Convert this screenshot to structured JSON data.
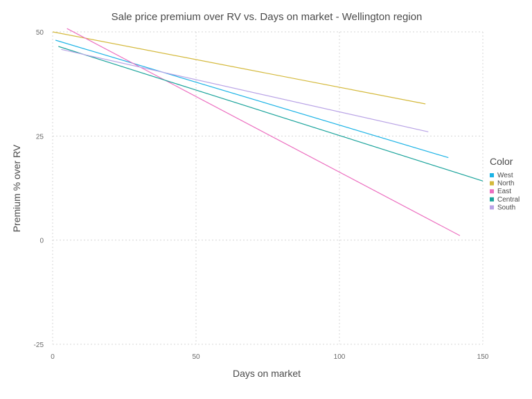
{
  "chart_data": {
    "type": "line",
    "title": "Sale price premium over RV vs. Days on market - Wellington region",
    "xlabel": "Days on market",
    "ylabel": "Premium % over RV",
    "xlim": [
      0,
      150
    ],
    "ylim": [
      -25,
      50
    ],
    "xticks": [
      0,
      50,
      100,
      150
    ],
    "yticks": [
      -25,
      0,
      25,
      50
    ],
    "grid": true,
    "legend": {
      "title": "Color",
      "placement": "right"
    },
    "series": [
      {
        "name": "West",
        "color": "#1bb3e6",
        "x": [
          1,
          138
        ],
        "y": [
          48.0,
          19.8
        ]
      },
      {
        "name": "North",
        "color": "#d4b93b",
        "x": [
          0,
          130
        ],
        "y": [
          50.0,
          32.7
        ]
      },
      {
        "name": "East",
        "color": "#ec6fc0",
        "x": [
          5,
          142
        ],
        "y": [
          50.8,
          1.1
        ]
      },
      {
        "name": "Central",
        "color": "#1aa39b",
        "x": [
          2,
          150
        ],
        "y": [
          46.5,
          14.2
        ]
      },
      {
        "name": "South",
        "color": "#b9a3e6",
        "x": [
          3,
          131
        ],
        "y": [
          45.8,
          26.0
        ]
      }
    ]
  }
}
